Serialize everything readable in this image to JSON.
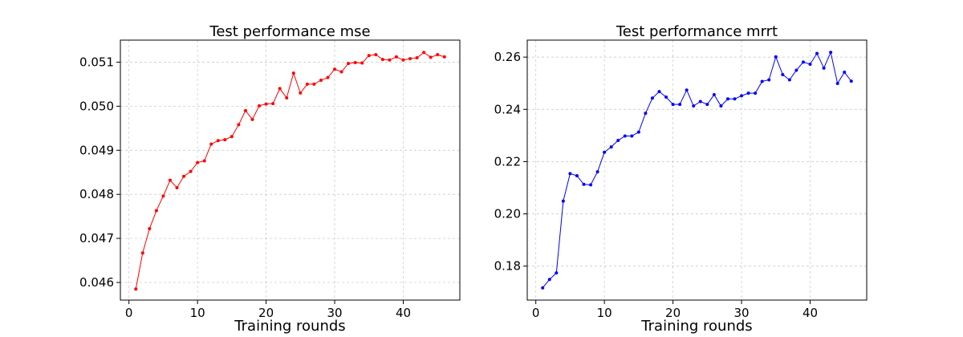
{
  "chart_data": [
    {
      "type": "line",
      "title": "Test performance mse",
      "xlabel": "Training rounds",
      "ylabel": "",
      "xlim": [
        -1.25,
        48.25
      ],
      "ylim": [
        0.0456,
        0.0515
      ],
      "xticks": [
        0,
        10,
        20,
        30,
        40
      ],
      "xtick_labels": [
        "0",
        "10",
        "20",
        "30",
        "40"
      ],
      "yticks": [
        0.046,
        0.047,
        0.048,
        0.049,
        0.05,
        0.051
      ],
      "ytick_labels": [
        "0.046",
        "0.047",
        "0.048",
        "0.049",
        "0.050",
        "0.051"
      ],
      "grid": true,
      "series": [
        {
          "color": "#ff0000",
          "marker": "dot",
          "x": [
            1,
            2,
            3,
            4,
            5,
            6,
            7,
            8,
            9,
            10,
            11,
            12,
            13,
            14,
            15,
            16,
            17,
            18,
            19,
            20,
            21,
            22,
            23,
            24,
            25,
            26,
            27,
            28,
            29,
            30,
            31,
            32,
            33,
            34,
            35,
            36,
            37,
            38,
            39,
            40,
            41,
            42,
            43,
            44,
            45,
            46
          ],
          "y": [
            0.04585,
            0.04667,
            0.04722,
            0.04763,
            0.04796,
            0.04832,
            0.04815,
            0.04841,
            0.04852,
            0.04872,
            0.04876,
            0.04914,
            0.04922,
            0.04924,
            0.04931,
            0.04958,
            0.0499,
            0.0497,
            0.05001,
            0.05005,
            0.05006,
            0.0504,
            0.05019,
            0.05075,
            0.0503,
            0.0505,
            0.0505,
            0.05059,
            0.05065,
            0.05084,
            0.05078,
            0.05097,
            0.05099,
            0.05098,
            0.05115,
            0.05117,
            0.05106,
            0.05105,
            0.05112,
            0.05105,
            0.05108,
            0.0511,
            0.05122,
            0.05111,
            0.05117,
            0.05112
          ]
        }
      ]
    },
    {
      "type": "line",
      "title": "Test performance mrrt",
      "xlabel": "Training rounds",
      "ylabel": "",
      "xlim": [
        -1.25,
        48.25
      ],
      "ylim": [
        0.167,
        0.2665
      ],
      "xticks": [
        0,
        10,
        20,
        30,
        40
      ],
      "xtick_labels": [
        "0",
        "10",
        "20",
        "30",
        "40"
      ],
      "yticks": [
        0.18,
        0.2,
        0.22,
        0.24,
        0.26
      ],
      "ytick_labels": [
        "0.18",
        "0.20",
        "0.22",
        "0.24",
        "0.26"
      ],
      "grid": true,
      "series": [
        {
          "color": "#0000ff",
          "marker": "dot",
          "x": [
            1,
            2,
            3,
            4,
            5,
            6,
            7,
            8,
            9,
            10,
            11,
            12,
            13,
            14,
            15,
            16,
            17,
            18,
            19,
            20,
            21,
            22,
            23,
            24,
            25,
            26,
            27,
            28,
            29,
            30,
            31,
            32,
            33,
            34,
            35,
            36,
            37,
            38,
            39,
            40,
            41,
            42,
            43,
            44,
            45,
            46
          ],
          "y": [
            0.1717,
            0.1749,
            0.1774,
            0.2049,
            0.2154,
            0.2146,
            0.2113,
            0.2111,
            0.2161,
            0.2236,
            0.2256,
            0.2281,
            0.2298,
            0.2298,
            0.2313,
            0.2385,
            0.2443,
            0.2468,
            0.2447,
            0.2419,
            0.2419,
            0.2474,
            0.2413,
            0.243,
            0.2419,
            0.2456,
            0.2413,
            0.244,
            0.244,
            0.2452,
            0.2462,
            0.2462,
            0.2507,
            0.2513,
            0.2601,
            0.2533,
            0.2513,
            0.255,
            0.2581,
            0.2573,
            0.2614,
            0.2558,
            0.2618,
            0.2499,
            0.2542,
            0.2508
          ]
        }
      ]
    }
  ]
}
